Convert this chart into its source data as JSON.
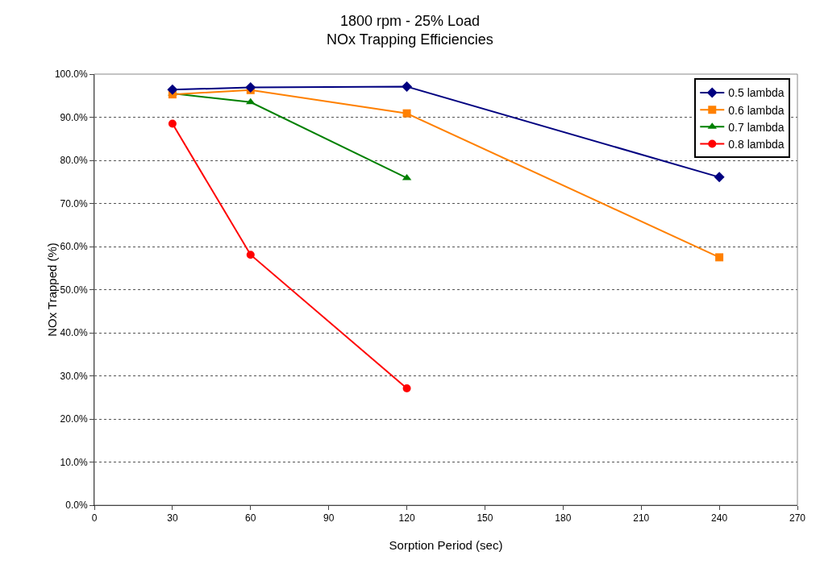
{
  "chart_data": {
    "type": "line",
    "title": "1800 rpm - 25% Load\nNOx Trapping Efficiencies",
    "xlabel": "Sorption Period (sec)",
    "ylabel": "NOx Trapped (%)",
    "xlim": [
      0,
      270
    ],
    "xticks": [
      0,
      30,
      60,
      90,
      120,
      150,
      180,
      210,
      240,
      270
    ],
    "ylim": [
      0,
      100
    ],
    "yticks": [
      {
        "value": 0,
        "label": "0.0%"
      },
      {
        "value": 10,
        "label": "10.0%"
      },
      {
        "value": 20,
        "label": "20.0%"
      },
      {
        "value": 30,
        "label": "30.0%"
      },
      {
        "value": 40,
        "label": "40.0%"
      },
      {
        "value": 50,
        "label": "50.0%"
      },
      {
        "value": 60,
        "label": "60.0%"
      },
      {
        "value": 70,
        "label": "70.0%"
      },
      {
        "value": 80,
        "label": "80.0%"
      },
      {
        "value": 90,
        "label": "90.0%"
      },
      {
        "value": 100,
        "label": "100.0%"
      }
    ],
    "grid": "y",
    "legend": "top right",
    "line_style": "solid",
    "series": [
      {
        "name": "0.5 lambda",
        "color": "#000080",
        "marker": "diamond",
        "x": [
          30,
          60,
          120,
          240
        ],
        "values": [
          96.4,
          96.9,
          97.1,
          76.1
        ]
      },
      {
        "name": "0.6 lambda",
        "color": "#ff8000",
        "marker": "square",
        "x": [
          30,
          60,
          120,
          240
        ],
        "values": [
          95.3,
          96.3,
          90.9,
          57.5
        ]
      },
      {
        "name": "0.7 lambda",
        "color": "#008000",
        "marker": "triangle",
        "x": [
          30,
          60,
          120
        ],
        "values": [
          95.5,
          93.5,
          75.9
        ]
      },
      {
        "name": "0.8 lambda",
        "color": "#ff0000",
        "marker": "circle",
        "x": [
          30,
          60,
          120
        ],
        "values": [
          88.5,
          58.1,
          27.1
        ]
      }
    ]
  }
}
